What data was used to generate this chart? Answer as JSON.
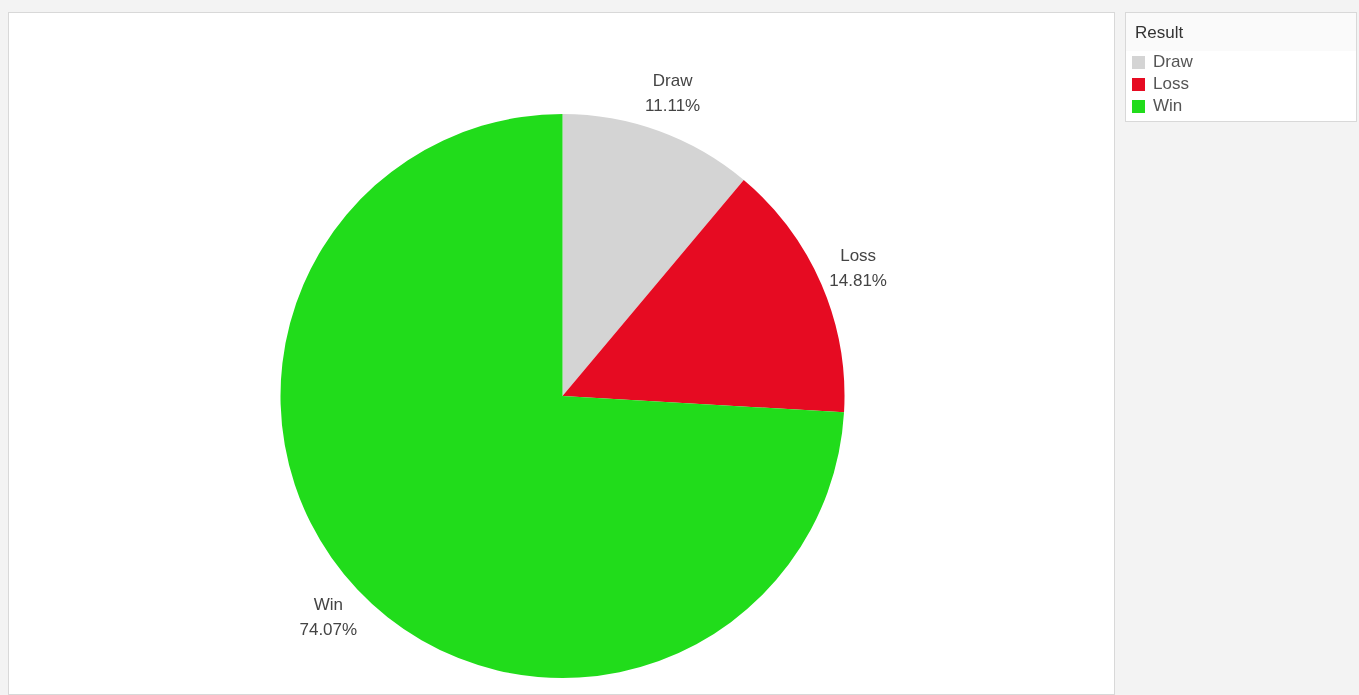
{
  "chart_data": {
    "type": "pie",
    "legend_title": "Result",
    "categories": [
      "Draw",
      "Loss",
      "Win"
    ],
    "values": [
      11.11,
      14.81,
      74.07
    ],
    "value_labels": [
      "11.11%",
      "14.81%",
      "74.07%"
    ],
    "colors": [
      "#d4d4d4",
      "#e60b22",
      "#21dc1b"
    ],
    "legend": "top right"
  }
}
